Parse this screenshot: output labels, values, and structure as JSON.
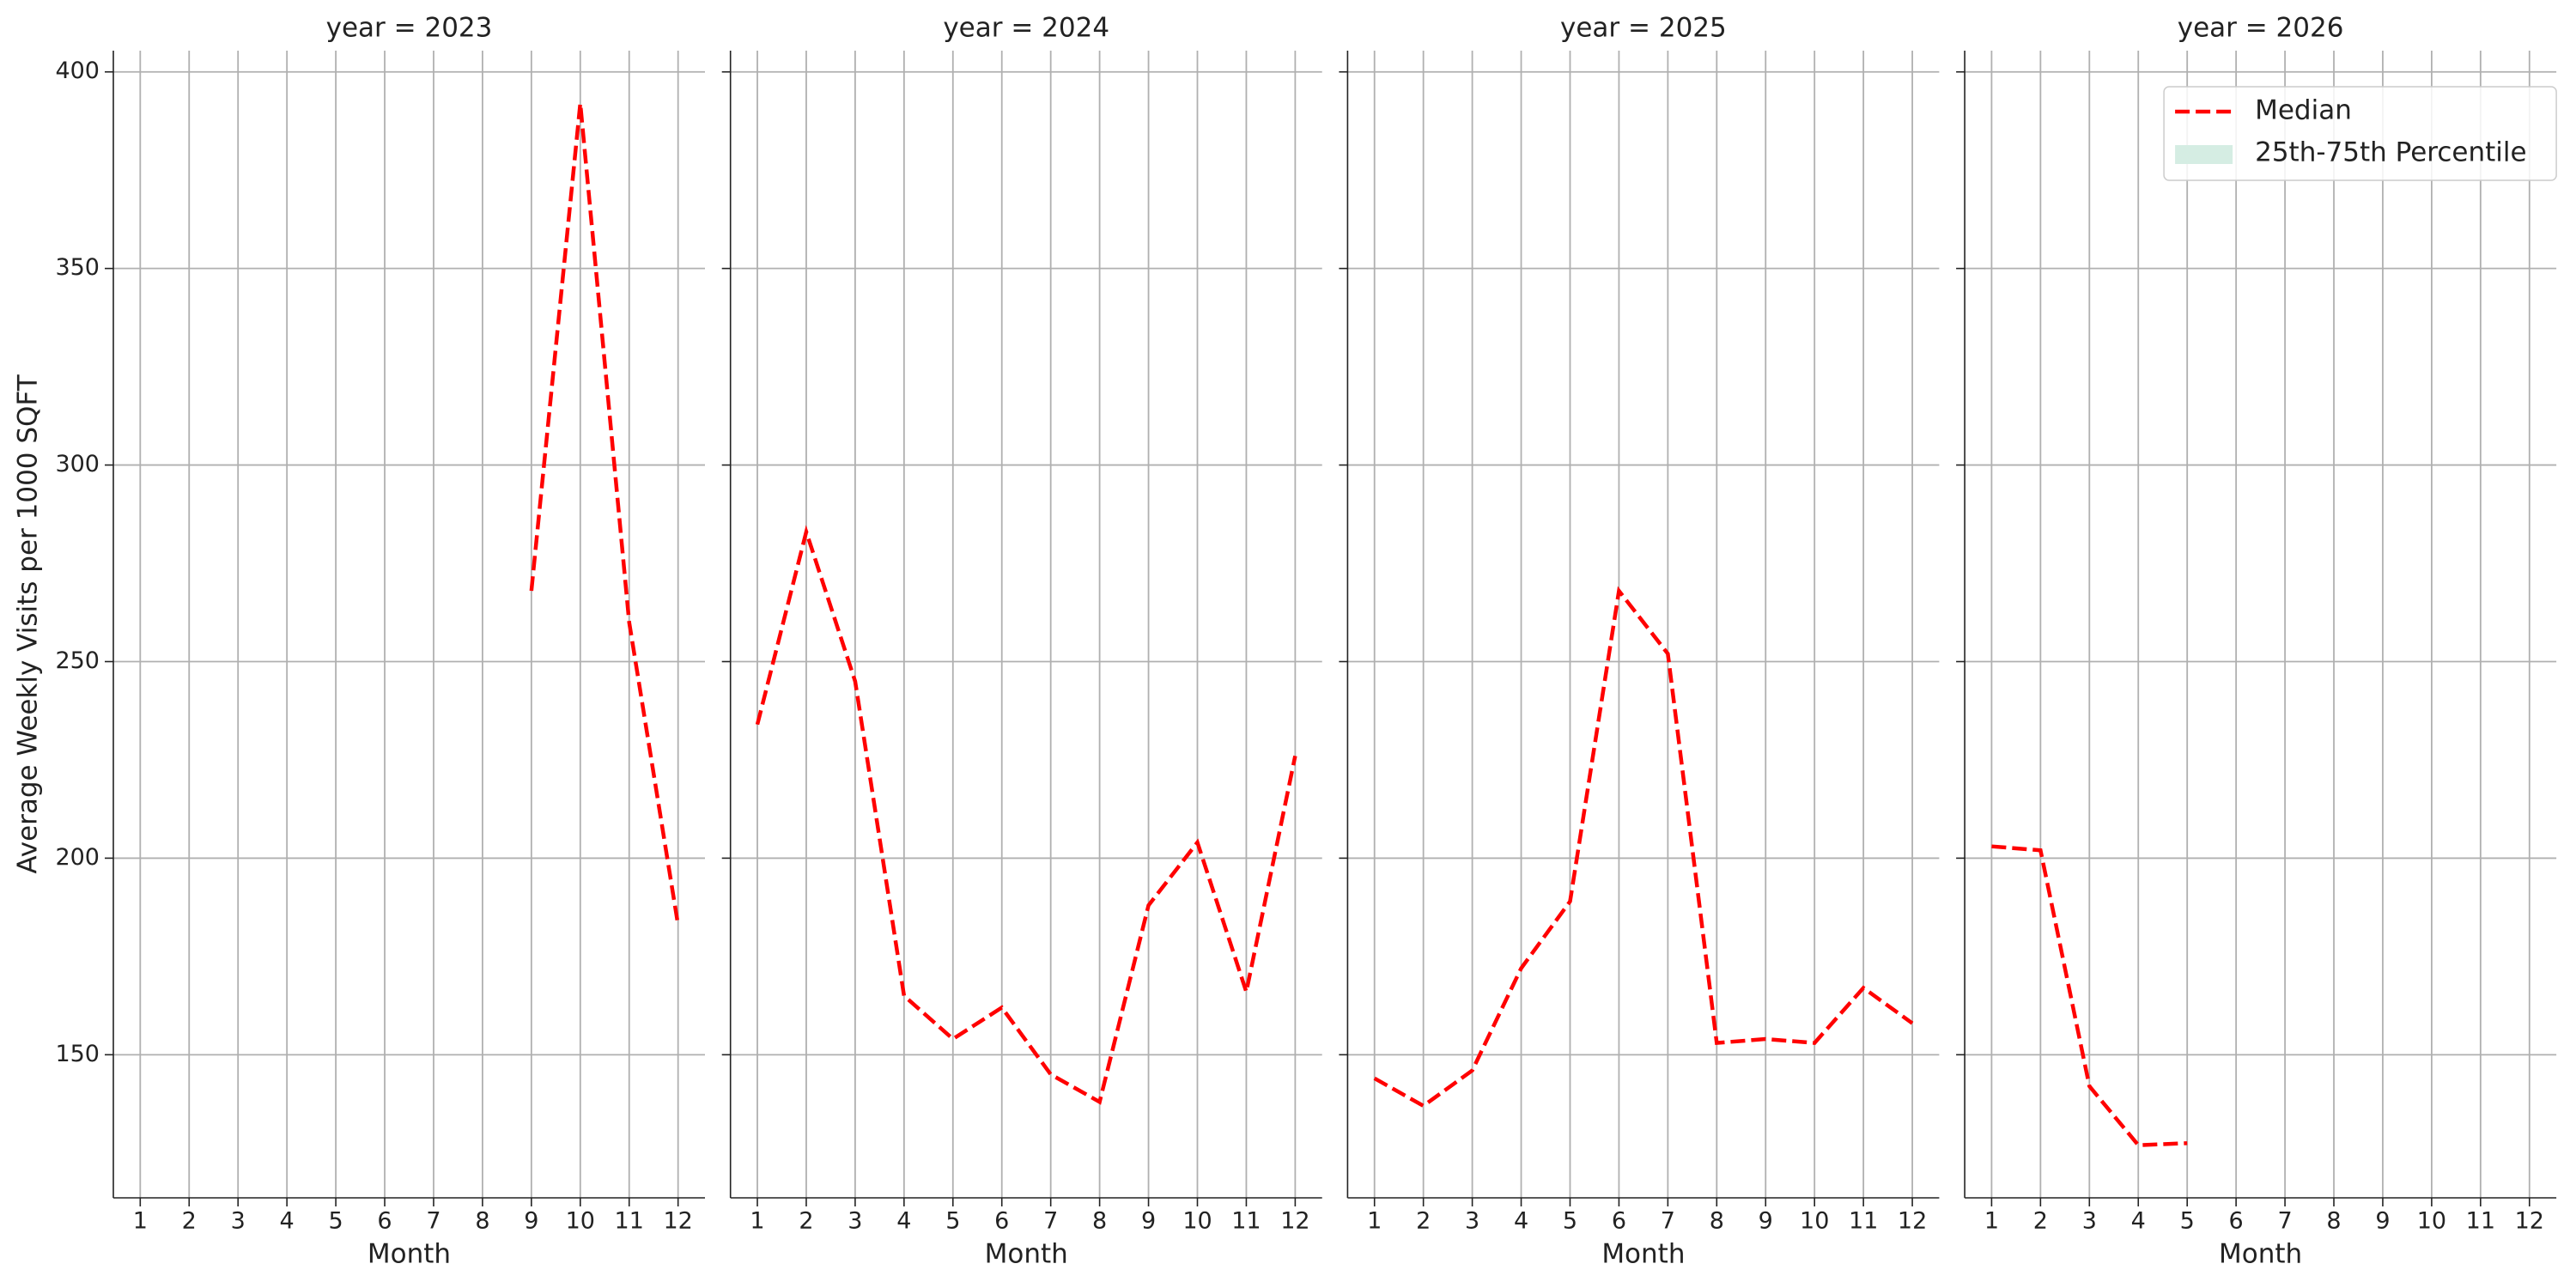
{
  "chart_data": [
    {
      "type": "line",
      "title": "year = 2023",
      "x_label": "Month",
      "y_label": "Average Weekly Visits per 1000 SQFT",
      "x": [
        1,
        2,
        3,
        4,
        5,
        6,
        7,
        8,
        9,
        10,
        11,
        12
      ],
      "xlim": [
        0.45,
        12.55
      ],
      "xticks": [
        1,
        2,
        3,
        4,
        5,
        6,
        7,
        8,
        9,
        10,
        11,
        12
      ],
      "ylim": [
        113.6,
        405.4
      ],
      "yticks": [
        150,
        200,
        250,
        300,
        350,
        400
      ],
      "show_ytick_labels": true,
      "grid": true,
      "series": [
        {
          "color": "#ff0000",
          "dashed": true,
          "values": [
            null,
            null,
            null,
            null,
            null,
            null,
            null,
            null,
            268,
            392,
            260,
            183
          ]
        }
      ]
    },
    {
      "type": "line",
      "title": "year = 2024",
      "x_label": "Month",
      "x": [
        1,
        2,
        3,
        4,
        5,
        6,
        7,
        8,
        9,
        10,
        11,
        12
      ],
      "xlim": [
        0.45,
        12.55
      ],
      "xticks": [
        1,
        2,
        3,
        4,
        5,
        6,
        7,
        8,
        9,
        10,
        11,
        12
      ],
      "ylim": [
        113.6,
        405.4
      ],
      "yticks": [
        150,
        200,
        250,
        300,
        350,
        400
      ],
      "show_ytick_labels": false,
      "grid": true,
      "series": [
        {
          "color": "#ff0000",
          "dashed": true,
          "values": [
            234,
            283,
            245,
            165,
            154,
            162,
            145,
            138,
            188,
            204,
            166,
            226
          ]
        }
      ]
    },
    {
      "type": "line",
      "title": "year = 2025",
      "x_label": "Month",
      "x": [
        1,
        2,
        3,
        4,
        5,
        6,
        7,
        8,
        9,
        10,
        11,
        12
      ],
      "xlim": [
        0.45,
        12.55
      ],
      "xticks": [
        1,
        2,
        3,
        4,
        5,
        6,
        7,
        8,
        9,
        10,
        11,
        12
      ],
      "ylim": [
        113.6,
        405.4
      ],
      "yticks": [
        150,
        200,
        250,
        300,
        350,
        400
      ],
      "show_ytick_labels": false,
      "grid": true,
      "series": [
        {
          "color": "#ff0000",
          "dashed": true,
          "values": [
            144,
            137,
            146,
            172,
            189,
            268,
            252,
            153,
            154,
            153,
            167,
            158
          ]
        }
      ]
    },
    {
      "type": "line",
      "title": "year = 2026",
      "x_label": "Month",
      "x": [
        1,
        2,
        3,
        4,
        5,
        6,
        7,
        8,
        9,
        10,
        11,
        12
      ],
      "xlim": [
        0.45,
        12.55
      ],
      "xticks": [
        1,
        2,
        3,
        4,
        5,
        6,
        7,
        8,
        9,
        10,
        11,
        12
      ],
      "ylim": [
        113.6,
        405.4
      ],
      "yticks": [
        150,
        200,
        250,
        300,
        350,
        400
      ],
      "show_ytick_labels": false,
      "grid": true,
      "legend": "upper right",
      "series": [
        {
          "name": "Median",
          "color": "#ff0000",
          "dashed": true,
          "values": [
            203,
            202,
            142,
            127,
            127.5,
            null,
            null,
            null,
            null,
            null,
            null,
            null
          ]
        },
        {
          "name": "25th-75th Percentile",
          "color": "#d5ede3",
          "band": true
        }
      ]
    }
  ]
}
